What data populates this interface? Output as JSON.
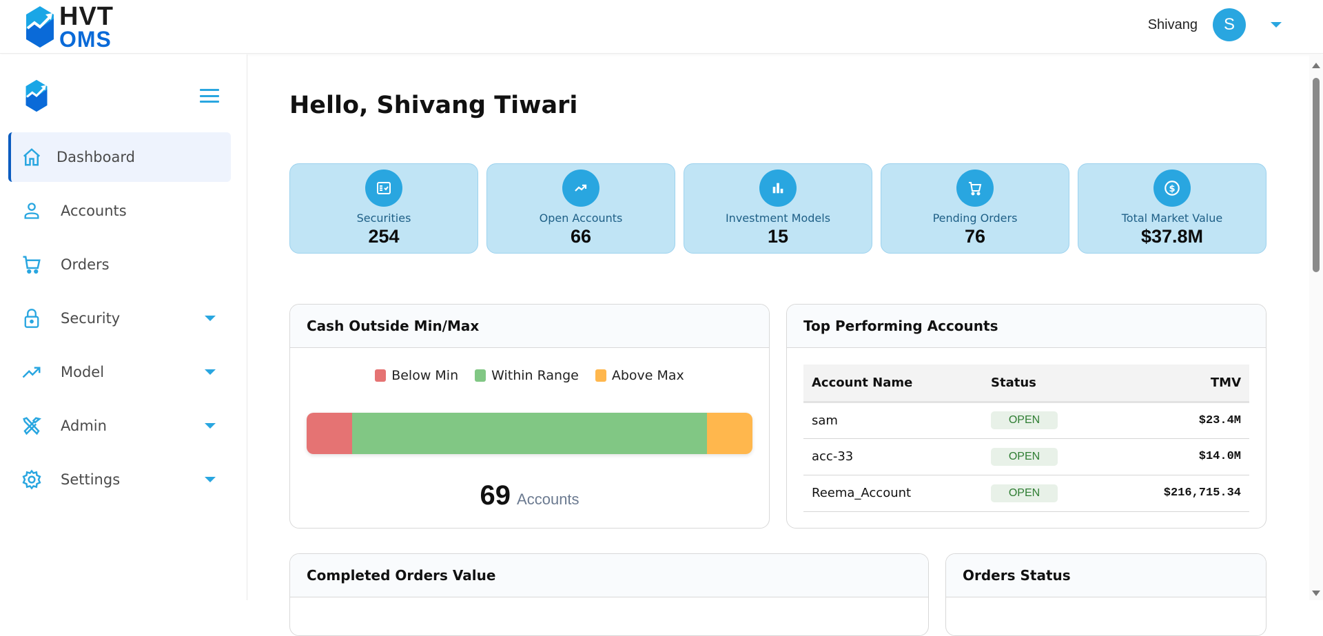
{
  "brand": {
    "line1": "HVT",
    "line2": "OMS",
    "logo_icon": "hexagon-chart-logo"
  },
  "user": {
    "name": "Shivang",
    "avatar_initial": "S",
    "menu_icon": "caret-down-icon"
  },
  "sidebar": {
    "logo_icon": "hexagon-chart-logo",
    "menu_icon": "hamburger-icon",
    "items": [
      {
        "label": "Dashboard",
        "icon": "home-icon",
        "active": true,
        "expandable": false
      },
      {
        "label": "Accounts",
        "icon": "user-icon",
        "active": false,
        "expandable": false
      },
      {
        "label": "Orders",
        "icon": "cart-icon",
        "active": false,
        "expandable": false
      },
      {
        "label": "Security",
        "icon": "lock-icon",
        "active": false,
        "expandable": true
      },
      {
        "label": "Model",
        "icon": "trending-up-icon",
        "active": false,
        "expandable": true
      },
      {
        "label": "Admin",
        "icon": "tools-icon",
        "active": false,
        "expandable": true
      },
      {
        "label": "Settings",
        "icon": "gear-icon",
        "active": false,
        "expandable": true
      }
    ]
  },
  "main": {
    "greeting": "Hello, Shivang Tiwari",
    "stats": [
      {
        "label": "Securities",
        "value": "254",
        "icon": "checklist-icon"
      },
      {
        "label": "Open Accounts",
        "value": "66",
        "icon": "trending-up-icon"
      },
      {
        "label": "Investment Models",
        "value": "15",
        "icon": "bar-chart-icon"
      },
      {
        "label": "Pending Orders",
        "value": "76",
        "icon": "cart-icon"
      },
      {
        "label": "Total Market Value",
        "value": "$37.8M",
        "icon": "dollar-circle-icon"
      }
    ],
    "cash_panel": {
      "title": "Cash Outside Min/Max",
      "legend": [
        {
          "label": "Below Min",
          "color": "#e57373"
        },
        {
          "label": "Within Range",
          "color": "#81c784"
        },
        {
          "label": "Above Max",
          "color": "#ffb74d"
        }
      ],
      "total_value": "69",
      "total_label": "Accounts"
    },
    "top_accounts": {
      "title": "Top Performing Accounts",
      "columns": [
        "Account Name",
        "Status",
        "TMV"
      ],
      "rows": [
        {
          "name": "sam",
          "status": "OPEN",
          "tmv": "$23.4M"
        },
        {
          "name": "acc-33",
          "status": "OPEN",
          "tmv": "$14.0M"
        },
        {
          "name": "Reema_Account",
          "status": "OPEN",
          "tmv": "$216,715.34"
        }
      ]
    },
    "completed_orders": {
      "title": "Completed Orders Value"
    },
    "orders_status": {
      "title": "Orders Status"
    }
  },
  "chart_data": {
    "type": "bar",
    "orientation": "horizontal-stacked",
    "title": "Cash Outside Min/Max",
    "categories": [
      "Accounts"
    ],
    "series": [
      {
        "name": "Below Min",
        "values": [
          7
        ],
        "color": "#e57373"
      },
      {
        "name": "Within Range",
        "values": [
          55
        ],
        "color": "#81c784"
      },
      {
        "name": "Above Max",
        "values": [
          7
        ],
        "color": "#ffb74d"
      }
    ],
    "total": 69,
    "legend_position": "top",
    "grid": false
  },
  "colors": {
    "accent": "#29a6e0",
    "brand_dark": "#0b5cc0",
    "card_bg": "#c0e4f5",
    "open_badge_text": "#2e7d32"
  }
}
